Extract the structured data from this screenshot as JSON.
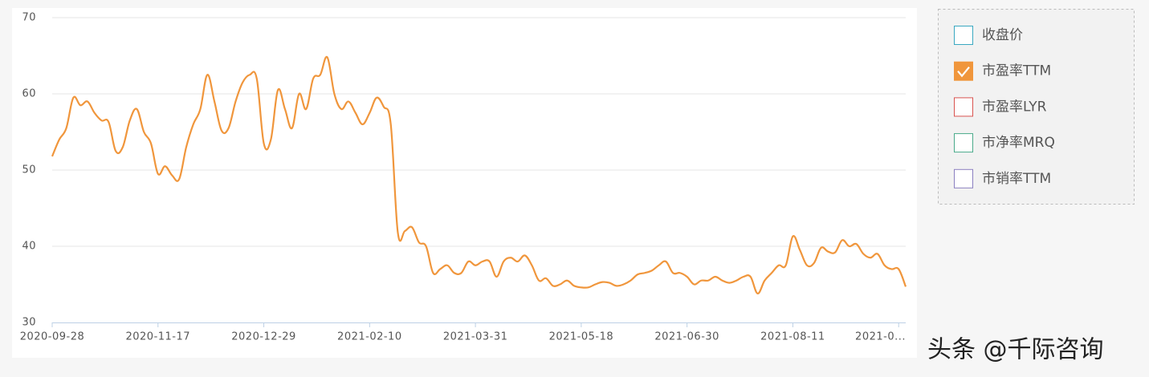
{
  "chart_data": {
    "type": "line",
    "categories": [
      "2020-09-28",
      null,
      null,
      null,
      null,
      null,
      null,
      null,
      null,
      null,
      null,
      null,
      null,
      null,
      null,
      "2020-11-17",
      null,
      null,
      null,
      null,
      null,
      null,
      null,
      null,
      null,
      null,
      null,
      null,
      null,
      null,
      "2020-12-29",
      null,
      null,
      null,
      null,
      null,
      null,
      null,
      null,
      null,
      null,
      null,
      null,
      null,
      null,
      "2021-02-10",
      null,
      null,
      null,
      null,
      null,
      null,
      null,
      null,
      null,
      null,
      null,
      null,
      null,
      null,
      "2021-03-31",
      null,
      null,
      null,
      null,
      null,
      null,
      null,
      null,
      null,
      null,
      null,
      null,
      null,
      null,
      "2021-05-18",
      null,
      null,
      null,
      null,
      null,
      null,
      null,
      null,
      null,
      null,
      null,
      null,
      null,
      null,
      "2021-06-30",
      null,
      null,
      null,
      null,
      null,
      null,
      null,
      null,
      null,
      null,
      null,
      null,
      null,
      null,
      "2021-08-11",
      null,
      null,
      null,
      null,
      null,
      null,
      null,
      null,
      null,
      null,
      null,
      null,
      null,
      null,
      "2021-0...",
      null
    ],
    "series": [
      {
        "name": "市盈率TTM",
        "color": "#f0963c",
        "values": [
          51.8,
          54,
          55.5,
          59.5,
          58.5,
          59,
          57.5,
          56.5,
          56.3,
          52.5,
          53,
          56.5,
          58,
          55,
          53.5,
          49.5,
          50.5,
          49.3,
          48.8,
          53,
          56,
          58,
          62.5,
          59,
          55.2,
          55.5,
          59,
          61.5,
          62.5,
          62,
          53.5,
          54,
          60.5,
          58,
          55.5,
          60,
          58,
          62,
          62.5,
          64.8,
          60,
          58,
          59,
          57.5,
          56,
          57.5,
          59.5,
          58.3,
          56,
          41.8,
          42,
          42.5,
          40.5,
          40,
          36.5,
          37,
          37.5,
          36.5,
          36.5,
          38,
          37.5,
          38,
          38,
          36,
          38,
          38.5,
          38,
          38.8,
          37.5,
          35.5,
          35.8,
          34.8,
          35,
          35.5,
          34.8,
          34.6,
          34.6,
          35,
          35.3,
          35.2,
          34.8,
          35,
          35.5,
          36.3,
          36.5,
          36.8,
          37.5,
          38,
          36.5,
          36.5,
          36,
          35,
          35.5,
          35.5,
          36,
          35.5,
          35.2,
          35.5,
          36,
          36,
          33.8,
          35.5,
          36.5,
          37.5,
          37.5,
          41.3,
          39.5,
          37.5,
          37.8,
          39.8,
          39.3,
          39.2,
          40.8,
          40,
          40.3,
          39,
          38.5,
          39,
          37.5,
          37,
          37,
          34.7
        ]
      }
    ],
    "ylim": [
      30,
      70
    ],
    "yticks": [
      30,
      40,
      50,
      60,
      70
    ],
    "grid": true,
    "legend": [
      {
        "name": "收盘价",
        "color": "#3aa8c1",
        "checked": false
      },
      {
        "name": "市盈率TTM",
        "color": "#f0963c",
        "checked": true
      },
      {
        "name": "市盈率LYR",
        "color": "#d9534f",
        "checked": false
      },
      {
        "name": "市净率MRQ",
        "color": "#4aaa8a",
        "checked": false
      },
      {
        "name": "市销率TTM",
        "color": "#8a7fc0",
        "checked": false
      }
    ],
    "watermark": "头条 @千际咨询"
  }
}
